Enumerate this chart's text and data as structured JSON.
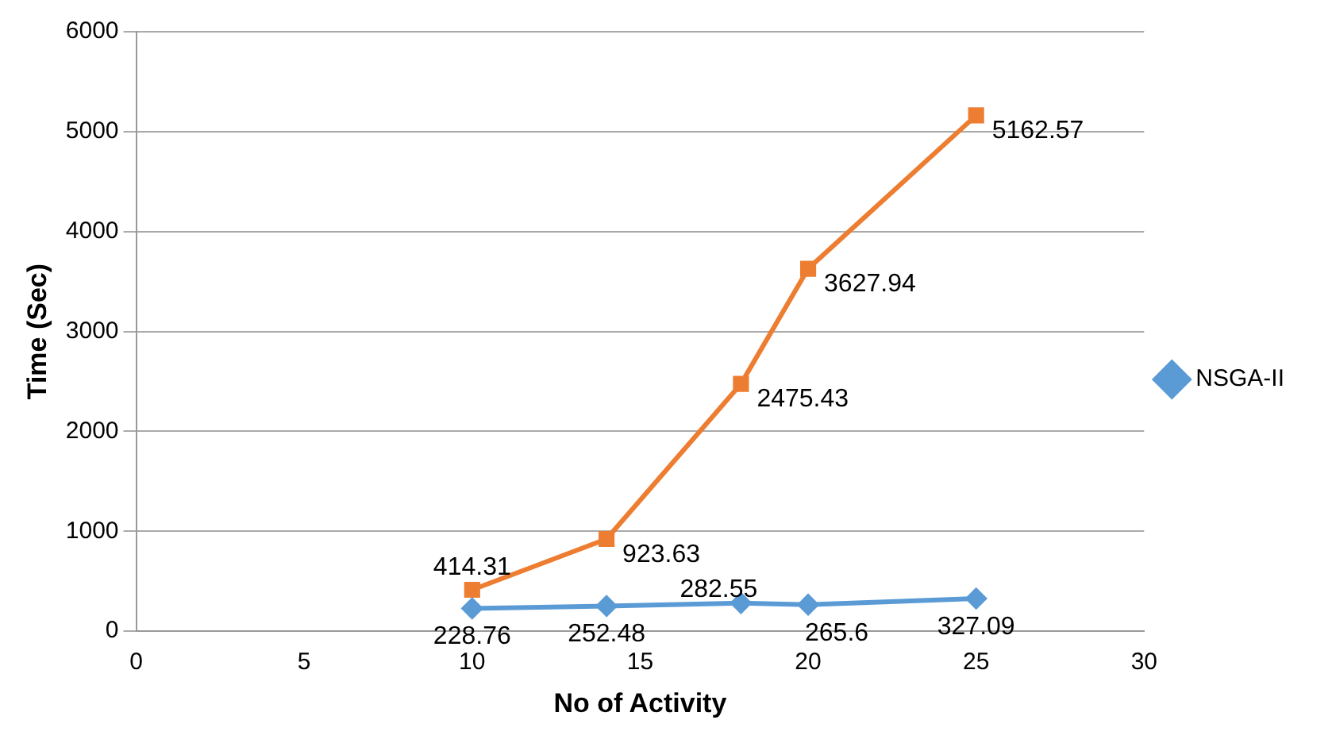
{
  "chart_data": {
    "type": "line",
    "xlabel": "No of Activity",
    "ylabel": "Time (Sec)",
    "xlim": [
      0,
      30
    ],
    "xticks": [
      0,
      5,
      10,
      15,
      20,
      25,
      30
    ],
    "ylim": [
      0,
      6000
    ],
    "yticks": [
      0,
      1000,
      2000,
      3000,
      4000,
      5000,
      6000
    ],
    "grid": "y",
    "legend": "right",
    "data_labels": true,
    "series": [
      {
        "name": "NSGA-II",
        "color": "#5b9bd5",
        "marker": "diamond",
        "x": [
          10,
          14,
          18,
          20,
          25
        ],
        "values": [
          228.76,
          252.48,
          282.55,
          265.6,
          327.09
        ]
      },
      {
        "color": "#ed7d31",
        "marker": "square",
        "x": [
          10,
          14,
          18,
          20,
          25
        ],
        "values": [
          414.31,
          923.63,
          2475.43,
          3627.94,
          5162.57
        ]
      }
    ]
  }
}
